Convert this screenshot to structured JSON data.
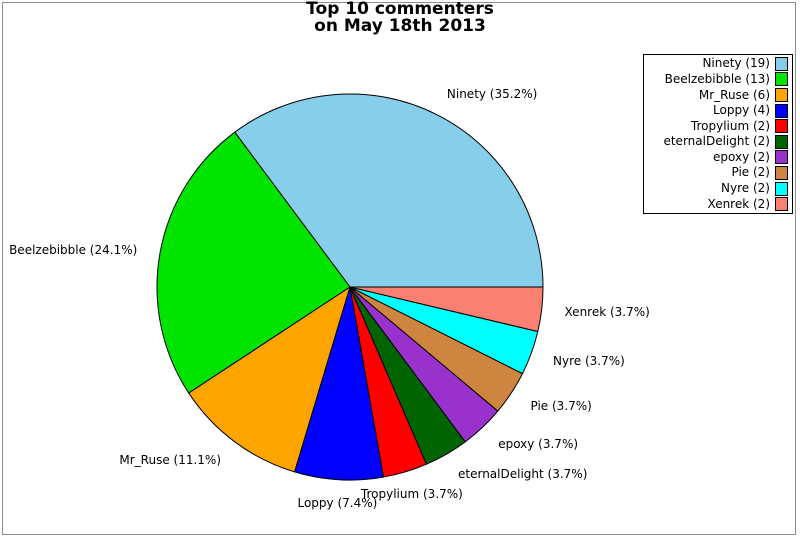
{
  "title": {
    "line1": "Top 10 commenters",
    "line2": "on May 18th 2013"
  },
  "frame": {
    "border_color": "#8e8e8e",
    "background_color": "#ffffff"
  },
  "chart_data": {
    "type": "pie",
    "title": "Top 10 commenters on May 18th 2013",
    "total_count": 54,
    "start_angle_deg": 0,
    "direction": "counterclockwise",
    "slice_label_format": "{label} ({percent}%)",
    "legend_label_format": "{label} ({count})",
    "legend_position": "upper right",
    "slice_border_color": "#000000",
    "slices": [
      {
        "label": "Ninety",
        "count": 19,
        "percent": 35.2,
        "color": "#87CEEB"
      },
      {
        "label": "Beelzebibble",
        "count": 13,
        "percent": 24.1,
        "color": "#00E400"
      },
      {
        "label": "Mr_Ruse",
        "count": 6,
        "percent": 11.1,
        "color": "#FFA500"
      },
      {
        "label": "Loppy",
        "count": 4,
        "percent": 7.4,
        "color": "#0000FF"
      },
      {
        "label": "Tropylium",
        "count": 2,
        "percent": 3.7,
        "color": "#FF0000"
      },
      {
        "label": "eternalDelight",
        "count": 2,
        "percent": 3.7,
        "color": "#006400"
      },
      {
        "label": "epoxy",
        "count": 2,
        "percent": 3.7,
        "color": "#9932CC"
      },
      {
        "label": "Pie",
        "count": 2,
        "percent": 3.7,
        "color": "#CD853F"
      },
      {
        "label": "Nyre",
        "count": 2,
        "percent": 3.7,
        "color": "#00FFFF"
      },
      {
        "label": "Xenrek",
        "count": 2,
        "percent": 3.7,
        "color": "#FA8072"
      }
    ]
  }
}
